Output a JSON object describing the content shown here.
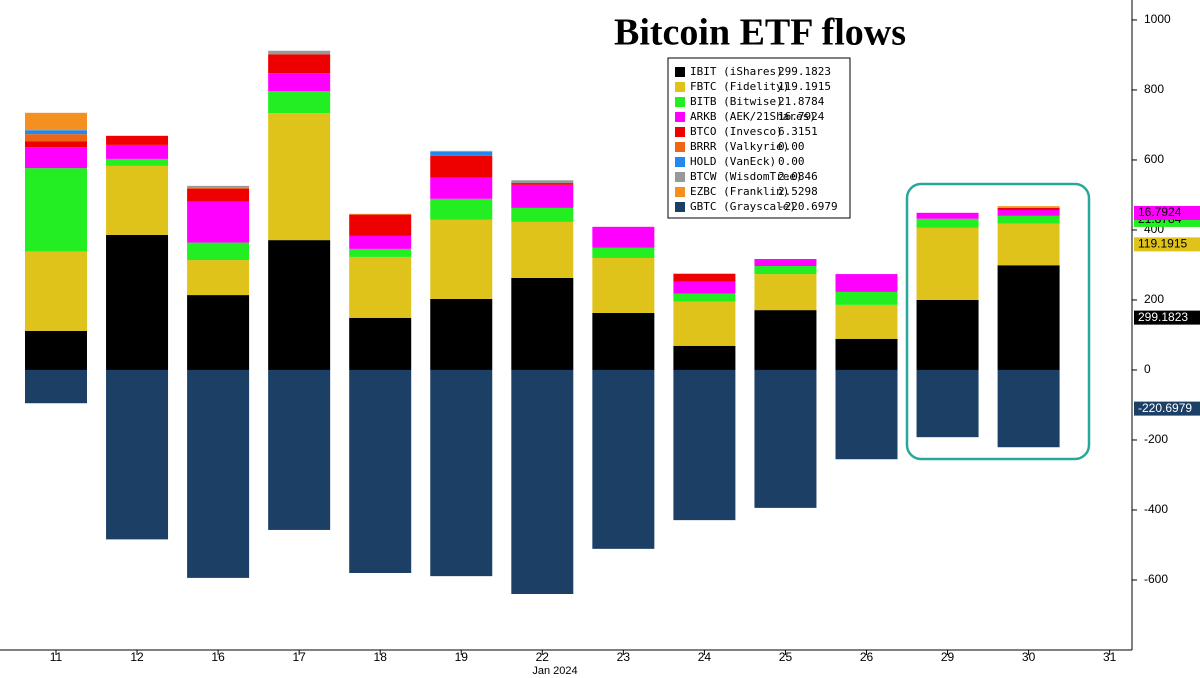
{
  "chart_data": {
    "type": "stacked_bar",
    "title": "Bitcoin ETF flows",
    "x_axis_label": "Jan 2024",
    "categories": [
      "11",
      "12",
      "16",
      "17",
      "18",
      "19",
      "22",
      "23",
      "24",
      "25",
      "26",
      "29",
      "30",
      "31"
    ],
    "ylim": [
      -800,
      1057
    ],
    "yticks": [
      -600,
      -400,
      -200,
      0,
      200,
      400,
      600,
      800,
      1000
    ],
    "axis_side": "right",
    "series": [
      {
        "name": "IBIT (iShares)",
        "color": "#000000",
        "legend_value": 299.1823,
        "axis_tag": true,
        "values": [
          111.7,
          386,
          214,
          371,
          149,
          203,
          263,
          163,
          69,
          171,
          89,
          200,
          299.1823,
          null
        ]
      },
      {
        "name": "FBTC (Fidelity)",
        "color": "#e0c31a",
        "legend_value": 119.1915,
        "axis_tag": true,
        "values": [
          227,
          197,
          100,
          363,
          174,
          226,
          160,
          157,
          126,
          103,
          97,
          206,
          119.1915,
          null
        ]
      },
      {
        "name": "BITB (Bitwise)",
        "color": "#22ee22",
        "legend_value": 21.8784,
        "axis_tag": true,
        "values": [
          238,
          20,
          50,
          63,
          23,
          60,
          40,
          29,
          23,
          23,
          37,
          26,
          21.8784,
          null
        ]
      },
      {
        "name": "ARKB (AEK/21Shares)",
        "color": "#ff00ff",
        "legend_value": 16.7924,
        "axis_tag": true,
        "values": [
          60,
          40,
          117,
          51,
          37,
          60,
          66,
          60,
          34,
          20,
          51,
          17,
          16.7924,
          null
        ]
      },
      {
        "name": "BTCO (Invesco)",
        "color": "#ee0000",
        "legend_value": 6.3151,
        "values": [
          17,
          26,
          37,
          54,
          60,
          63,
          5,
          0,
          23,
          0,
          0,
          0,
          6.3151,
          null
        ]
      },
      {
        "name": "BRRR (Valkyrie)",
        "color": "#ee6611",
        "legend_value": {
          "value": 0,
          "label": "0.00"
        },
        "values": [
          20,
          0,
          3,
          0,
          3,
          0,
          0,
          0,
          0,
          0,
          0,
          0,
          0,
          null
        ]
      },
      {
        "name": "HOLD (VanEck)",
        "color": "#2288ee",
        "legend_value": {
          "value": 0,
          "label": "0.00"
        },
        "values": [
          11,
          0,
          0,
          0,
          0,
          11,
          0,
          0,
          0,
          0,
          0,
          0,
          0,
          null
        ]
      },
      {
        "name": "BTCW (WisdomTree)",
        "color": "#999999",
        "legend_value": 2.0846,
        "values": [
          1,
          0,
          5,
          10,
          0,
          3,
          8,
          0,
          0,
          0,
          0,
          0,
          2.0846,
          null
        ]
      },
      {
        "name": "EZBC (Franklin)",
        "color": "#f39020",
        "legend_value": 2.5298,
        "values": [
          49,
          0,
          0,
          0,
          0,
          0,
          0,
          0,
          0,
          0,
          0,
          0,
          2.5298,
          null
        ]
      },
      {
        "name": "GBTC (Grayscale)",
        "color": "#1c3f66",
        "legend_value": -220.6979,
        "axis_tag": true,
        "values": [
          -95,
          -484,
          -594,
          -457,
          -580,
          -589,
          -640,
          -511,
          -429,
          -394,
          -255,
          -192,
          -220.6979,
          null
        ]
      }
    ]
  }
}
